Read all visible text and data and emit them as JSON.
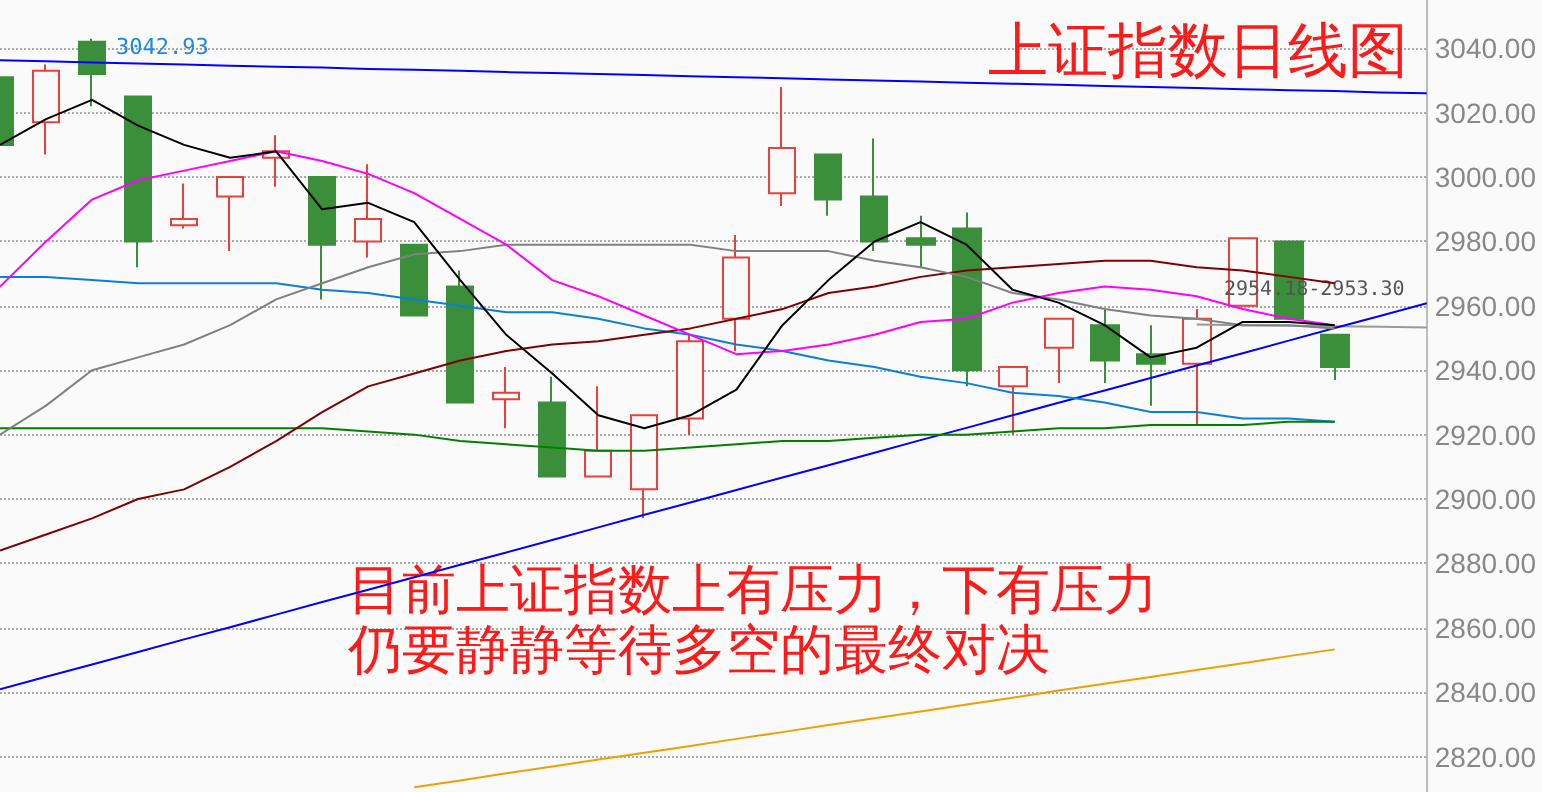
{
  "chart_data": {
    "type": "candlestick",
    "title": "上证指数日线图",
    "annotations": [
      "3042.93",
      "2954.18-2953.30",
      "目前上证指数上有压力，下有压力",
      "仍要静静等待多空的最终对决"
    ],
    "categories": [
      null,
      null,
      null,
      null,
      null,
      null,
      null,
      null,
      null,
      null,
      null,
      null,
      null,
      null,
      null,
      null,
      null,
      null,
      null,
      null,
      null,
      null,
      null,
      null,
      null,
      null,
      null,
      null,
      null,
      null,
      null,
      null
    ],
    "ohlc": [
      [
        3031,
        3031,
        3010,
        3010
      ],
      [
        3017,
        3035,
        3007,
        3033
      ],
      [
        3042,
        3042.93,
        3022,
        3032
      ],
      [
        3025,
        3025,
        2972,
        2980
      ],
      [
        2985,
        2998,
        2984,
        2987
      ],
      [
        2994,
        3000,
        2977,
        3000
      ],
      [
        3006,
        3013,
        2997,
        3008
      ],
      [
        3000,
        3000,
        2962,
        2979
      ],
      [
        2980,
        3004,
        2975,
        2987
      ],
      [
        2979,
        2979,
        2957,
        2957
      ],
      [
        2966,
        2971,
        2930,
        2930
      ],
      [
        2931,
        2941,
        2922,
        2933
      ],
      [
        2930,
        2938,
        2907,
        2907
      ],
      [
        2907,
        2935,
        2907,
        2915
      ],
      [
        2903,
        2926,
        2894,
        2926
      ],
      [
        2925,
        2951,
        2920,
        2949
      ],
      [
        2956,
        2982,
        2946,
        2975
      ],
      [
        2995,
        3028,
        2991,
        3009
      ],
      [
        3007,
        3007,
        2988,
        2993
      ],
      [
        2994,
        3012,
        2977,
        2980
      ],
      [
        2981,
        2988,
        2972,
        2979
      ],
      [
        2984,
        2989,
        2935,
        2940
      ],
      [
        2935,
        2941,
        2920,
        2941
      ],
      [
        2947,
        2956,
        2936,
        2956
      ],
      [
        2954,
        2959,
        2936,
        2943
      ],
      [
        2945,
        2954,
        2929,
        2942
      ],
      [
        2942,
        2959,
        2923,
        2956
      ],
      [
        2960,
        2981,
        2960,
        2981
      ],
      [
        2980,
        2980,
        2956,
        2956
      ],
      [
        2951,
        2951,
        2937,
        2941
      ],
      null,
      null
    ],
    "colors": [
      "#3b8f3b",
      "#e8413c",
      "#3b8f3b",
      "#3b8f3b",
      "#e8413c",
      "#e8413c",
      "#e8413c",
      "#3b8f3b",
      "#e8413c",
      "#3b8f3b",
      "#3b8f3b",
      "#e8413c",
      "#3b8f3b",
      "#e8413c",
      "#e8413c",
      "#e8413c",
      "#e8413c",
      "#e8413c",
      "#3b8f3b",
      "#3b8f3b",
      "#3b8f3b",
      "#3b8f3b",
      "#e8413c",
      "#e8413c",
      "#3b8f3b",
      "#3b8f3b",
      "#e8413c",
      "#e8413c",
      "#3b8f3b",
      "#3b8f3b",
      null,
      null
    ],
    "series": [
      {
        "type": "line",
        "color": "#000000",
        "values": [
          3010,
          3018,
          3024,
          3016,
          3010,
          3006,
          3008,
          2990,
          2992,
          2986,
          2968,
          2951,
          2939,
          2926,
          2922,
          2926,
          2934,
          2954,
          2968,
          2980,
          2986,
          2979,
          2965,
          2961,
          2954,
          2944,
          2947,
          2955,
          2955,
          2954,
          null,
          null
        ]
      },
      {
        "type": "line",
        "color": "#ff00ff",
        "values": [
          2966,
          2980,
          2993,
          2999,
          3002,
          3005,
          3008,
          3005,
          3001,
          2995,
          2987,
          2979,
          2968,
          2963,
          2957,
          2951,
          2945,
          2946,
          2948,
          2951,
          2955,
          2956,
          2961,
          2964,
          2966,
          2965,
          2963,
          2959,
          2956,
          2954,
          null,
          null
        ]
      },
      {
        "type": "line",
        "color": "#808080",
        "values": [
          2920,
          2929,
          2940,
          2944,
          2948,
          2954,
          2962,
          2967,
          2972,
          2976,
          2977,
          2979,
          2979,
          2979,
          2979,
          2979,
          2977,
          2977,
          2977,
          2974,
          2972,
          2969,
          2964,
          2962,
          2959,
          2957,
          2956,
          2954,
          2954,
          2953,
          null,
          null
        ]
      },
      {
        "type": "line",
        "color": "#800000",
        "values": [
          2884,
          2889,
          2894,
          2900,
          2903,
          2910,
          2918,
          2927,
          2935,
          2939,
          2943,
          2946,
          2948,
          2949,
          2951,
          2953,
          2956,
          2959,
          2964,
          2966,
          2969,
          2971,
          2972,
          2973,
          2974,
          2974,
          2972,
          2971,
          2969,
          2967,
          null,
          null
        ]
      },
      {
        "type": "line",
        "color": "#008000",
        "values": [
          2922,
          2922,
          2922,
          2922,
          2922,
          2922,
          2922,
          2922,
          2921,
          2920,
          2918,
          2917,
          2916,
          2915,
          2915,
          2916,
          2917,
          2918,
          2918,
          2919,
          2920,
          2920,
          2921,
          2922,
          2922,
          2923,
          2923,
          2923,
          2924,
          2924,
          null,
          null
        ]
      },
      {
        "type": "line",
        "color": "#0a7fd9",
        "values": [
          2969,
          2969,
          2968,
          2967,
          2967,
          2967,
          2967,
          2965,
          2964,
          2962,
          2960,
          2958,
          2958,
          2956,
          2953,
          2951,
          2948,
          2946,
          2943,
          2941,
          2938,
          2936,
          2933,
          2932,
          2930,
          2927,
          2927,
          2925,
          2925,
          2924,
          null,
          null
        ]
      },
      {
        "type": "line",
        "color": "#0000ff",
        "values": [
          3036.3,
          3036.0,
          3035.6,
          3035.3,
          3035.0,
          3034.6,
          3034.3,
          3034.0,
          3033.6,
          3033.3,
          3033.0,
          3032.6,
          3032.3,
          3032.0,
          3031.7,
          3031.3,
          3031.0,
          3030.7,
          3030.3,
          3030.0,
          3029.7,
          3029.3,
          3029.0,
          3028.7,
          3028.3,
          3028.0,
          3027.7,
          3027.3,
          3027.0,
          3026.7,
          3026.3,
          3026.0
        ]
      },
      {
        "type": "line",
        "color": "#0000ff",
        "values": [
          2840.9,
          2844.8,
          2848.6,
          2852.5,
          2856.4,
          2860.2,
          2864.1,
          2868.0,
          2871.8,
          2875.7,
          2879.6,
          2883.4,
          2887.3,
          2891.2,
          2895.1,
          2898.9,
          2902.8,
          2906.7,
          2910.5,
          2914.4,
          2918.3,
          2922.1,
          2926.0,
          2929.9,
          2933.7,
          2937.6,
          2941.5,
          2945.3,
          2949.2,
          2953.1,
          2956.9,
          2960.8
        ]
      },
      {
        "type": "line",
        "color": "#f0a000",
        "values": [
          null,
          null,
          null,
          null,
          null,
          null,
          null,
          null,
          null,
          2810.5,
          2812.6,
          2814.8,
          2816.9,
          2819.1,
          2821.2,
          2823.3,
          2825.5,
          2827.6,
          2829.8,
          2831.9,
          2834.0,
          2836.2,
          2838.3,
          2840.5,
          2842.6,
          2844.7,
          2846.9,
          2849.0,
          2851.2,
          2853.3,
          null,
          null
        ]
      },
      {
        "type": "line",
        "color": "#999999",
        "values": [
          null,
          null,
          null,
          null,
          null,
          null,
          null,
          null,
          null,
          null,
          null,
          null,
          null,
          null,
          null,
          null,
          null,
          null,
          null,
          null,
          null,
          null,
          null,
          null,
          null,
          null,
          2954.2,
          2954.0,
          2953.8,
          2953.7,
          2953.5,
          2953.3
        ]
      }
    ],
    "ylim": [
      2809,
      3055
    ],
    "yticks": [
      {
        "value": 2820,
        "label": "2820.00"
      },
      {
        "value": 2840,
        "label": "2840.00"
      },
      {
        "value": 2860,
        "label": "2860.00"
      },
      {
        "value": 2880,
        "label": "2880.00"
      },
      {
        "value": 2900,
        "label": "2900.00"
      },
      {
        "value": 2920,
        "label": "2920.00"
      },
      {
        "value": 2940,
        "label": "2940.00"
      },
      {
        "value": 2960,
        "label": "2960.00"
      },
      {
        "value": 2980,
        "label": "2980.00"
      },
      {
        "value": 3000,
        "label": "3000.00"
      },
      {
        "value": 3020,
        "label": "3020.00"
      },
      {
        "value": 3040,
        "label": "3040.00"
      }
    ],
    "grid": "y",
    "marker": "none",
    "line_style": "solid"
  }
}
